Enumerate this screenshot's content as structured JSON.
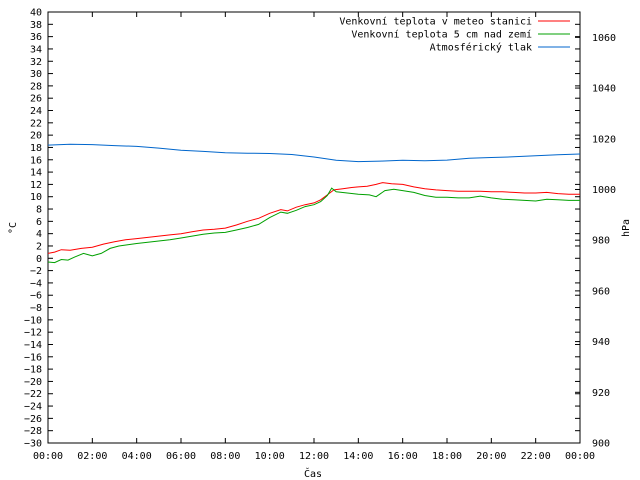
{
  "chart_data": {
    "type": "line",
    "xlabel": "Čas",
    "ylabel_left": "°C",
    "ylabel_right": "hPa",
    "x_ticks": [
      "00:00",
      "02:00",
      "04:00",
      "06:00",
      "08:00",
      "10:00",
      "12:00",
      "14:00",
      "16:00",
      "18:00",
      "20:00",
      "22:00",
      "00:00"
    ],
    "x_range_hours": [
      0,
      24
    ],
    "ylim_left": [
      -30,
      40
    ],
    "yticks_left_step": 2,
    "ylim_right": [
      900,
      1070
    ],
    "yticks_right": [
      900,
      920,
      940,
      960,
      980,
      1000,
      1020,
      1040,
      1060
    ],
    "grid": false,
    "legend_position": "top-right",
    "series": [
      {
        "name": "Venkovní teplota v meteo stanici",
        "axis": "left",
        "color": "#ff0000",
        "points": [
          [
            0,
            0.8
          ],
          [
            0.3,
            1.0
          ],
          [
            0.6,
            1.4
          ],
          [
            1.0,
            1.3
          ],
          [
            1.5,
            1.6
          ],
          [
            2.0,
            1.8
          ],
          [
            2.5,
            2.3
          ],
          [
            3.0,
            2.7
          ],
          [
            3.5,
            3.0
          ],
          [
            4.0,
            3.2
          ],
          [
            4.5,
            3.4
          ],
          [
            5.0,
            3.6
          ],
          [
            5.5,
            3.8
          ],
          [
            6.0,
            4.0
          ],
          [
            6.5,
            4.3
          ],
          [
            7.0,
            4.6
          ],
          [
            7.5,
            4.7
          ],
          [
            8.0,
            4.9
          ],
          [
            8.5,
            5.4
          ],
          [
            9.0,
            6.0
          ],
          [
            9.5,
            6.5
          ],
          [
            10.0,
            7.3
          ],
          [
            10.5,
            7.9
          ],
          [
            10.8,
            7.7
          ],
          [
            11.2,
            8.3
          ],
          [
            11.6,
            8.7
          ],
          [
            12.0,
            9.0
          ],
          [
            12.3,
            9.5
          ],
          [
            12.6,
            10.3
          ],
          [
            12.9,
            11.1
          ],
          [
            13.3,
            11.3
          ],
          [
            13.7,
            11.5
          ],
          [
            14.0,
            11.6
          ],
          [
            14.4,
            11.7
          ],
          [
            14.8,
            12.0
          ],
          [
            15.1,
            12.3
          ],
          [
            15.5,
            12.1
          ],
          [
            16.0,
            12.0
          ],
          [
            16.5,
            11.6
          ],
          [
            17.0,
            11.3
          ],
          [
            17.5,
            11.1
          ],
          [
            18.0,
            11.0
          ],
          [
            18.5,
            10.9
          ],
          [
            19.0,
            10.9
          ],
          [
            19.5,
            10.9
          ],
          [
            20.0,
            10.8
          ],
          [
            20.5,
            10.8
          ],
          [
            21.0,
            10.7
          ],
          [
            21.5,
            10.6
          ],
          [
            22.0,
            10.6
          ],
          [
            22.5,
            10.7
          ],
          [
            23.0,
            10.5
          ],
          [
            23.5,
            10.4
          ],
          [
            24.0,
            10.4
          ]
        ]
      },
      {
        "name": "Venkovní teplota 5 cm nad zemí",
        "axis": "left",
        "color": "#00a000",
        "points": [
          [
            0,
            -0.6
          ],
          [
            0.3,
            -0.7
          ],
          [
            0.6,
            -0.2
          ],
          [
            0.9,
            -0.3
          ],
          [
            1.2,
            0.2
          ],
          [
            1.6,
            0.8
          ],
          [
            2.0,
            0.4
          ],
          [
            2.4,
            0.8
          ],
          [
            2.8,
            1.6
          ],
          [
            3.2,
            2.0
          ],
          [
            3.6,
            2.2
          ],
          [
            4.0,
            2.4
          ],
          [
            4.5,
            2.6
          ],
          [
            5.0,
            2.8
          ],
          [
            5.5,
            3.0
          ],
          [
            6.0,
            3.3
          ],
          [
            6.5,
            3.6
          ],
          [
            7.0,
            3.9
          ],
          [
            7.5,
            4.1
          ],
          [
            8.0,
            4.2
          ],
          [
            8.5,
            4.6
          ],
          [
            9.0,
            5.0
          ],
          [
            9.5,
            5.5
          ],
          [
            10.0,
            6.6
          ],
          [
            10.5,
            7.5
          ],
          [
            10.8,
            7.3
          ],
          [
            11.2,
            7.8
          ],
          [
            11.6,
            8.4
          ],
          [
            12.0,
            8.7
          ],
          [
            12.3,
            9.2
          ],
          [
            12.6,
            10.2
          ],
          [
            12.8,
            11.4
          ],
          [
            13.0,
            10.8
          ],
          [
            13.5,
            10.6
          ],
          [
            14.0,
            10.4
          ],
          [
            14.5,
            10.3
          ],
          [
            14.8,
            10.0
          ],
          [
            15.2,
            11.0
          ],
          [
            15.6,
            11.2
          ],
          [
            16.0,
            11.0
          ],
          [
            16.5,
            10.7
          ],
          [
            17.0,
            10.2
          ],
          [
            17.5,
            9.9
          ],
          [
            18.0,
            9.9
          ],
          [
            18.5,
            9.8
          ],
          [
            19.0,
            9.8
          ],
          [
            19.5,
            10.1
          ],
          [
            20.0,
            9.8
          ],
          [
            20.5,
            9.6
          ],
          [
            21.0,
            9.5
          ],
          [
            21.5,
            9.4
          ],
          [
            22.0,
            9.3
          ],
          [
            22.5,
            9.6
          ],
          [
            23.0,
            9.5
          ],
          [
            23.5,
            9.4
          ],
          [
            24.0,
            9.4
          ]
        ]
      },
      {
        "name": "Atmosférický tlak",
        "axis": "right",
        "color": "#0066cc",
        "points": [
          [
            0,
            1017.5
          ],
          [
            1,
            1017.8
          ],
          [
            2,
            1017.7
          ],
          [
            3,
            1017.3
          ],
          [
            4,
            1017.0
          ],
          [
            5,
            1016.3
          ],
          [
            6,
            1015.5
          ],
          [
            7,
            1015.0
          ],
          [
            8,
            1014.5
          ],
          [
            9,
            1014.3
          ],
          [
            10,
            1014.2
          ],
          [
            11,
            1013.8
          ],
          [
            12,
            1012.8
          ],
          [
            13,
            1011.5
          ],
          [
            14,
            1011.0
          ],
          [
            15,
            1011.2
          ],
          [
            16,
            1011.5
          ],
          [
            17,
            1011.3
          ],
          [
            18,
            1011.6
          ],
          [
            19,
            1012.3
          ],
          [
            20,
            1012.6
          ],
          [
            21,
            1012.9
          ],
          [
            22,
            1013.3
          ],
          [
            23,
            1013.7
          ],
          [
            24,
            1014.0
          ]
        ]
      }
    ]
  }
}
